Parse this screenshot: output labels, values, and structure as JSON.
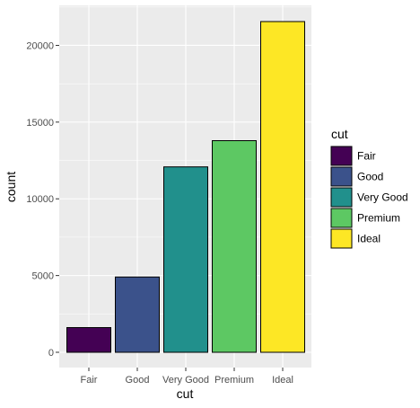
{
  "chart_data": {
    "type": "bar",
    "categories": [
      "Fair",
      "Good",
      "Very Good",
      "Premium",
      "Ideal"
    ],
    "values": [
      1610,
      4906,
      12082,
      13791,
      21551
    ],
    "xlabel": "cut",
    "ylabel": "count",
    "ylim": [
      0,
      21551
    ],
    "yticks": [
      0,
      5000,
      10000,
      15000,
      20000
    ],
    "ytick_labels": [
      "0",
      "5000",
      "10000",
      "15000",
      "20000"
    ],
    "grid": true,
    "colors": [
      "#440154",
      "#3b528b",
      "#21908c",
      "#5dc863",
      "#fde725"
    ],
    "panel_background": "#ebebeb",
    "grid_color": "#ffffff",
    "legend": {
      "title": "cut",
      "position": "right",
      "entries": [
        "Fair",
        "Good",
        "Very Good",
        "Premium",
        "Ideal"
      ]
    }
  }
}
